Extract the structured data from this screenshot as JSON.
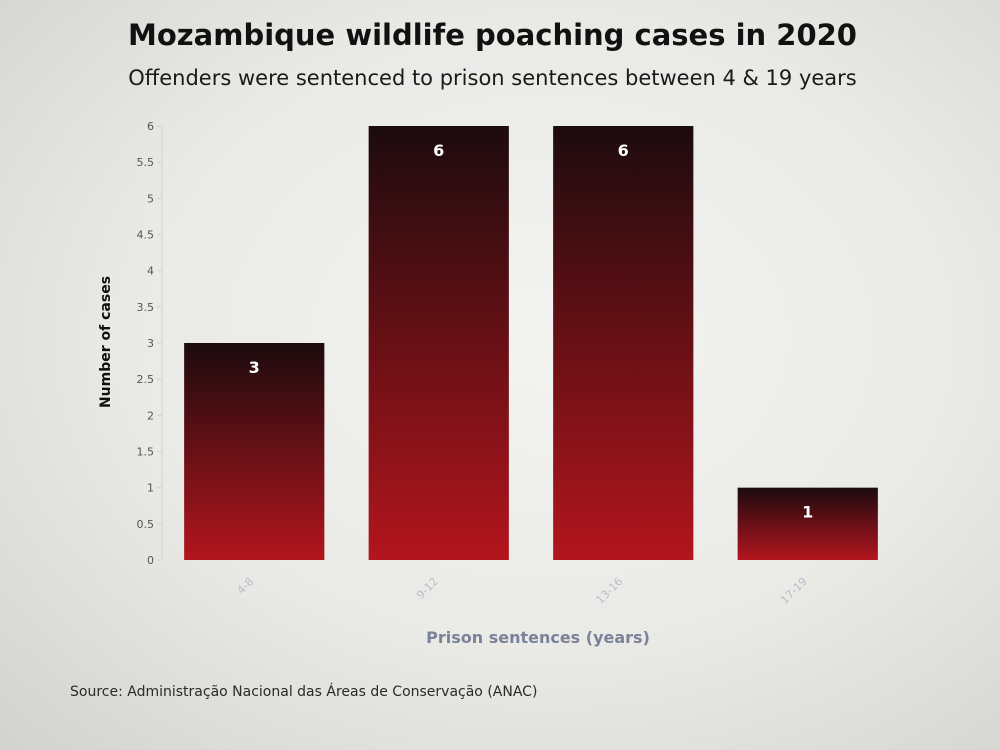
{
  "chart_data": {
    "type": "bar",
    "title": "Mozambique wildlife poaching cases in 2020",
    "subtitle": "Offenders were sentenced to prison sentences between 4 & 19 years",
    "xlabel": "Prison sentences (years)",
    "ylabel": "Number of cases",
    "categories": [
      "4-8",
      "9-12",
      "13-16",
      "17-19"
    ],
    "values": [
      3,
      6,
      6,
      1
    ],
    "ylim": [
      0,
      6
    ],
    "yticks": [
      "0",
      "0.5",
      "1",
      "1.5",
      "2",
      "2.5",
      "3",
      "3.5",
      "4",
      "4.5",
      "5",
      "5.5",
      "6"
    ],
    "bar_color_top": "#1c0b0e",
    "bar_color_bottom": "#b3151d",
    "grid": false
  },
  "source": "Source: Administração Nacional das Áreas de Conservação (ANAC)"
}
